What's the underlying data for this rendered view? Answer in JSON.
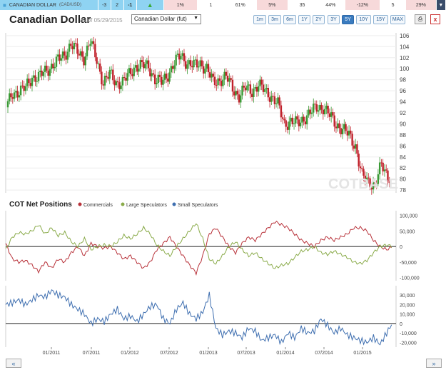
{
  "ticker": {
    "name": "CANADIAN DOLLAR",
    "symbol": "(CAD/USD)",
    "cells": [
      "-3",
      "2",
      "-1"
    ],
    "arrow": "up-arrow-icon",
    "values": [
      "1%",
      "1",
      "61%",
      "5%",
      "35",
      "44%",
      "-12%",
      "5",
      "29%"
    ]
  },
  "header": {
    "title": "Canadian Dollar",
    "asof": "as of 05/29/2015",
    "contract": "Canadian Dollar (fut)",
    "ranges": [
      "1m",
      "3m",
      "6m",
      "1Y",
      "2Y",
      "3Y",
      "5Y",
      "10Y",
      "15Y",
      "MAX"
    ],
    "active_range": "5Y",
    "close_label": "x"
  },
  "watermark": "COTBASE",
  "cot": {
    "title": "COT Net Positions",
    "legend": [
      {
        "name": "Commercials",
        "color": "#b8323a"
      },
      {
        "name": "Large Speculators",
        "color": "#8aab4a"
      },
      {
        "name": "Small Speculators",
        "color": "#3f6fb0"
      }
    ]
  },
  "chart_data": [
    {
      "type": "candlestick",
      "title": "Canadian Dollar",
      "y_ticks": [
        106,
        104,
        102,
        100,
        98,
        96,
        94,
        92,
        90,
        88,
        86,
        84,
        82,
        80,
        78
      ],
      "ylim": [
        77.5,
        106.5
      ],
      "up_color": "#3a9a35",
      "down_color": "#c0202a",
      "close_series": [
        [
          "2010-06",
          93
        ],
        [
          "2010-07",
          95.5
        ],
        [
          "2010-08",
          96
        ],
        [
          "2010-09",
          96.5
        ],
        [
          "2010-10",
          98.5
        ],
        [
          "2010-11",
          98.5
        ],
        [
          "2010-12",
          99.5
        ],
        [
          "2011-01",
          100.5
        ],
        [
          "2011-02",
          101.5
        ],
        [
          "2011-03",
          102.5
        ],
        [
          "2011-04",
          104.5
        ],
        [
          "2011-05",
          103
        ],
        [
          "2011-06",
          102
        ],
        [
          "2011-07",
          105
        ],
        [
          "2011-08",
          101.5
        ],
        [
          "2011-09",
          97.5
        ],
        [
          "2011-10",
          99
        ],
        [
          "2011-11",
          97.5
        ],
        [
          "2011-12",
          97.5
        ],
        [
          "2012-01",
          99
        ],
        [
          "2012-02",
          100.5
        ],
        [
          "2012-03",
          100.5
        ],
        [
          "2012-04",
          100.5
        ],
        [
          "2012-05",
          98
        ],
        [
          "2012-06",
          97.5
        ],
        [
          "2012-07",
          99
        ],
        [
          "2012-08",
          101
        ],
        [
          "2012-09",
          102.5
        ],
        [
          "2012-10",
          101
        ],
        [
          "2012-11",
          100.5
        ],
        [
          "2012-12",
          101
        ],
        [
          "2013-01",
          100
        ],
        [
          "2013-02",
          97.5
        ],
        [
          "2013-03",
          98
        ],
        [
          "2013-04",
          98.5
        ],
        [
          "2013-05",
          96.5
        ],
        [
          "2013-06",
          95
        ],
        [
          "2013-07",
          96.5
        ],
        [
          "2013-08",
          96
        ],
        [
          "2013-09",
          97
        ],
        [
          "2013-10",
          96
        ],
        [
          "2013-11",
          95
        ],
        [
          "2013-12",
          93.5
        ],
        [
          "2014-01",
          90
        ],
        [
          "2014-02",
          90.5
        ],
        [
          "2014-03",
          90
        ],
        [
          "2014-04",
          91
        ],
        [
          "2014-05",
          92
        ],
        [
          "2014-06",
          93
        ],
        [
          "2014-07",
          93
        ],
        [
          "2014-08",
          91.5
        ],
        [
          "2014-09",
          90
        ],
        [
          "2014-10",
          89
        ],
        [
          "2014-11",
          88
        ],
        [
          "2014-12",
          86
        ],
        [
          "2015-01",
          80.5
        ],
        [
          "2015-02",
          79.5
        ],
        [
          "2015-03",
          79
        ],
        [
          "2015-04",
          82.5
        ],
        [
          "2015-05",
          80.5
        ]
      ]
    },
    {
      "type": "line",
      "title": "COT Net Positions",
      "y_ticks": [
        "100,000",
        "50,000",
        "0",
        "-50,000",
        "-100,000"
      ],
      "ylim": [
        -110000,
        115000
      ],
      "series": [
        {
          "name": "Commercials",
          "color": "#b8323a",
          "values": [
            10000,
            -40000,
            -50000,
            -45000,
            -60000,
            -80000,
            -50000,
            -70000,
            -40000,
            -50000,
            -20000,
            0,
            -30000,
            10000,
            0,
            -5000,
            0,
            -20000,
            -40000,
            -30000,
            -50000,
            -70000,
            -50000,
            -10000,
            10000,
            30000,
            0,
            -30000,
            -60000,
            -85000,
            -30000,
            40000,
            60000,
            30000,
            0,
            -20000,
            10000,
            30000,
            20000,
            40000,
            60000,
            80000,
            70000,
            60000,
            40000,
            20000,
            10000,
            0,
            20000,
            30000,
            20000,
            30000,
            40000,
            60000,
            60000,
            50000,
            20000,
            0,
            -10000,
            0
          ]
        },
        {
          "name": "Large Speculators",
          "color": "#8aab4a",
          "values": [
            -10000,
            30000,
            45000,
            40000,
            50000,
            70000,
            40000,
            60000,
            35000,
            45000,
            15000,
            0,
            25000,
            -10000,
            0,
            5000,
            0,
            15000,
            35000,
            25000,
            40000,
            60000,
            40000,
            5000,
            -15000,
            -30000,
            0,
            25000,
            50000,
            75000,
            25000,
            -40000,
            -55000,
            -30000,
            0,
            15000,
            -10000,
            -30000,
            -20000,
            -40000,
            -55000,
            -70000,
            -60000,
            -55000,
            -35000,
            -15000,
            -10000,
            0,
            -20000,
            -25000,
            -15000,
            -25000,
            -35000,
            -50000,
            -55000,
            -45000,
            -20000,
            0,
            5000,
            0
          ]
        }
      ]
    },
    {
      "type": "line",
      "y_ticks": [
        "30,000",
        "20,000",
        "10,000",
        "0",
        "-10,000",
        "-20,000"
      ],
      "ylim": [
        -25000,
        40000
      ],
      "x_ticks": [
        "01/2011",
        "07/2011",
        "01/2012",
        "07/2012",
        "01/2013",
        "07/2013",
        "01/2014",
        "07/2014",
        "01/2015"
      ],
      "series": [
        {
          "name": "Small Speculators",
          "color": "#3f6fb0",
          "values": [
            20000,
            22000,
            25000,
            20000,
            25000,
            30000,
            28000,
            35000,
            30000,
            28000,
            20000,
            15000,
            10000,
            0,
            5000,
            2000,
            10000,
            15000,
            5000,
            8000,
            2000,
            10000,
            18000,
            20000,
            5000,
            0,
            15000,
            22000,
            10000,
            5000,
            12000,
            30000,
            -5000,
            -12000,
            -8000,
            -10000,
            -15000,
            -5000,
            -8000,
            -18000,
            -15000,
            -12000,
            -20000,
            -10000,
            -15000,
            -5000,
            -10000,
            -8000,
            5000,
            -2000,
            -10000,
            -5000,
            -12000,
            -15000,
            -18000,
            -20000,
            -15000,
            -22000,
            -10000,
            2000
          ]
        }
      ]
    }
  ]
}
